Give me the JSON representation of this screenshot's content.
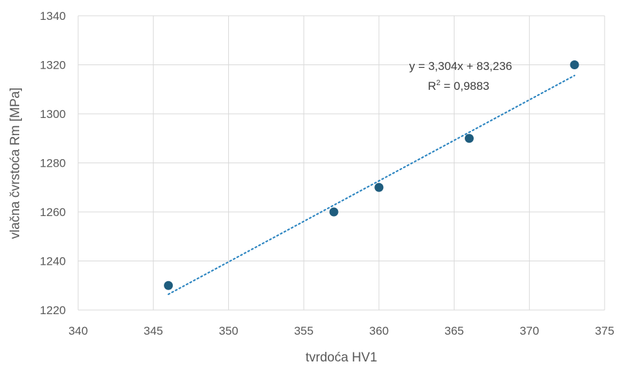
{
  "chart_data": {
    "type": "scatter",
    "title": "",
    "xlabel": "tvrdoća HV1",
    "ylabel": "vlačna čvrstoća Rm [MPa]",
    "xlim": [
      340,
      375
    ],
    "ylim": [
      1220,
      1340
    ],
    "x_ticks": [
      "340",
      "345",
      "350",
      "355",
      "360",
      "365",
      "370",
      "375"
    ],
    "y_ticks": [
      "1220",
      "1240",
      "1260",
      "1280",
      "1300",
      "1320",
      "1340"
    ],
    "grid": true,
    "legend": "none",
    "series": [
      {
        "x": [
          346,
          357,
          360,
          366,
          373
        ],
        "y": [
          1230,
          1260,
          1270,
          1290,
          1320
        ],
        "marker_color": "#1f5d7e"
      }
    ],
    "trendline": {
      "type": "linear",
      "slope": 3.304,
      "intercept": 83.236,
      "x_range": [
        346,
        373
      ],
      "style": "dotted",
      "color": "#2e86c1",
      "equation_label": "y = 3,304x + 83,236",
      "r2_label": "0,9883"
    }
  }
}
